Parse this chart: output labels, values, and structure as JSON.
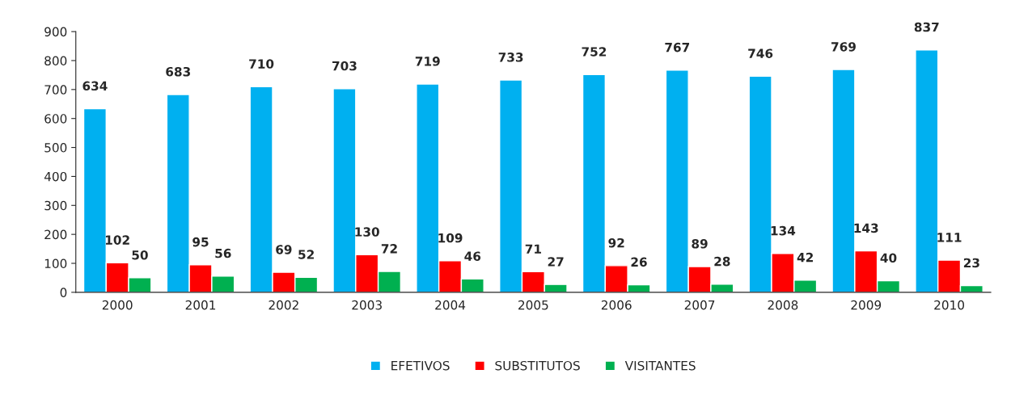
{
  "chart_data": {
    "type": "bar",
    "categories": [
      "2000",
      "2001",
      "2002",
      "2003",
      "2004",
      "2005",
      "2006",
      "2007",
      "2008",
      "2009",
      "2010"
    ],
    "series": [
      {
        "name": "EFETIVOS",
        "color": "#00b0f0",
        "values": [
          634,
          683,
          710,
          703,
          719,
          733,
          752,
          767,
          746,
          769,
          837
        ]
      },
      {
        "name": "SUBSTITUTOS",
        "color": "#ff0000",
        "values": [
          102,
          95,
          69,
          130,
          109,
          71,
          92,
          89,
          134,
          143,
          111
        ]
      },
      {
        "name": "VISITANTES",
        "color": "#00b050",
        "values": [
          50,
          56,
          52,
          72,
          46,
          27,
          26,
          28,
          42,
          40,
          23
        ]
      }
    ],
    "ylim": [
      0,
      900
    ],
    "yticks": [
      0,
      100,
      200,
      300,
      400,
      500,
      600,
      700,
      800,
      900
    ],
    "grid": false,
    "legend": "bottom",
    "data_labels": true
  }
}
